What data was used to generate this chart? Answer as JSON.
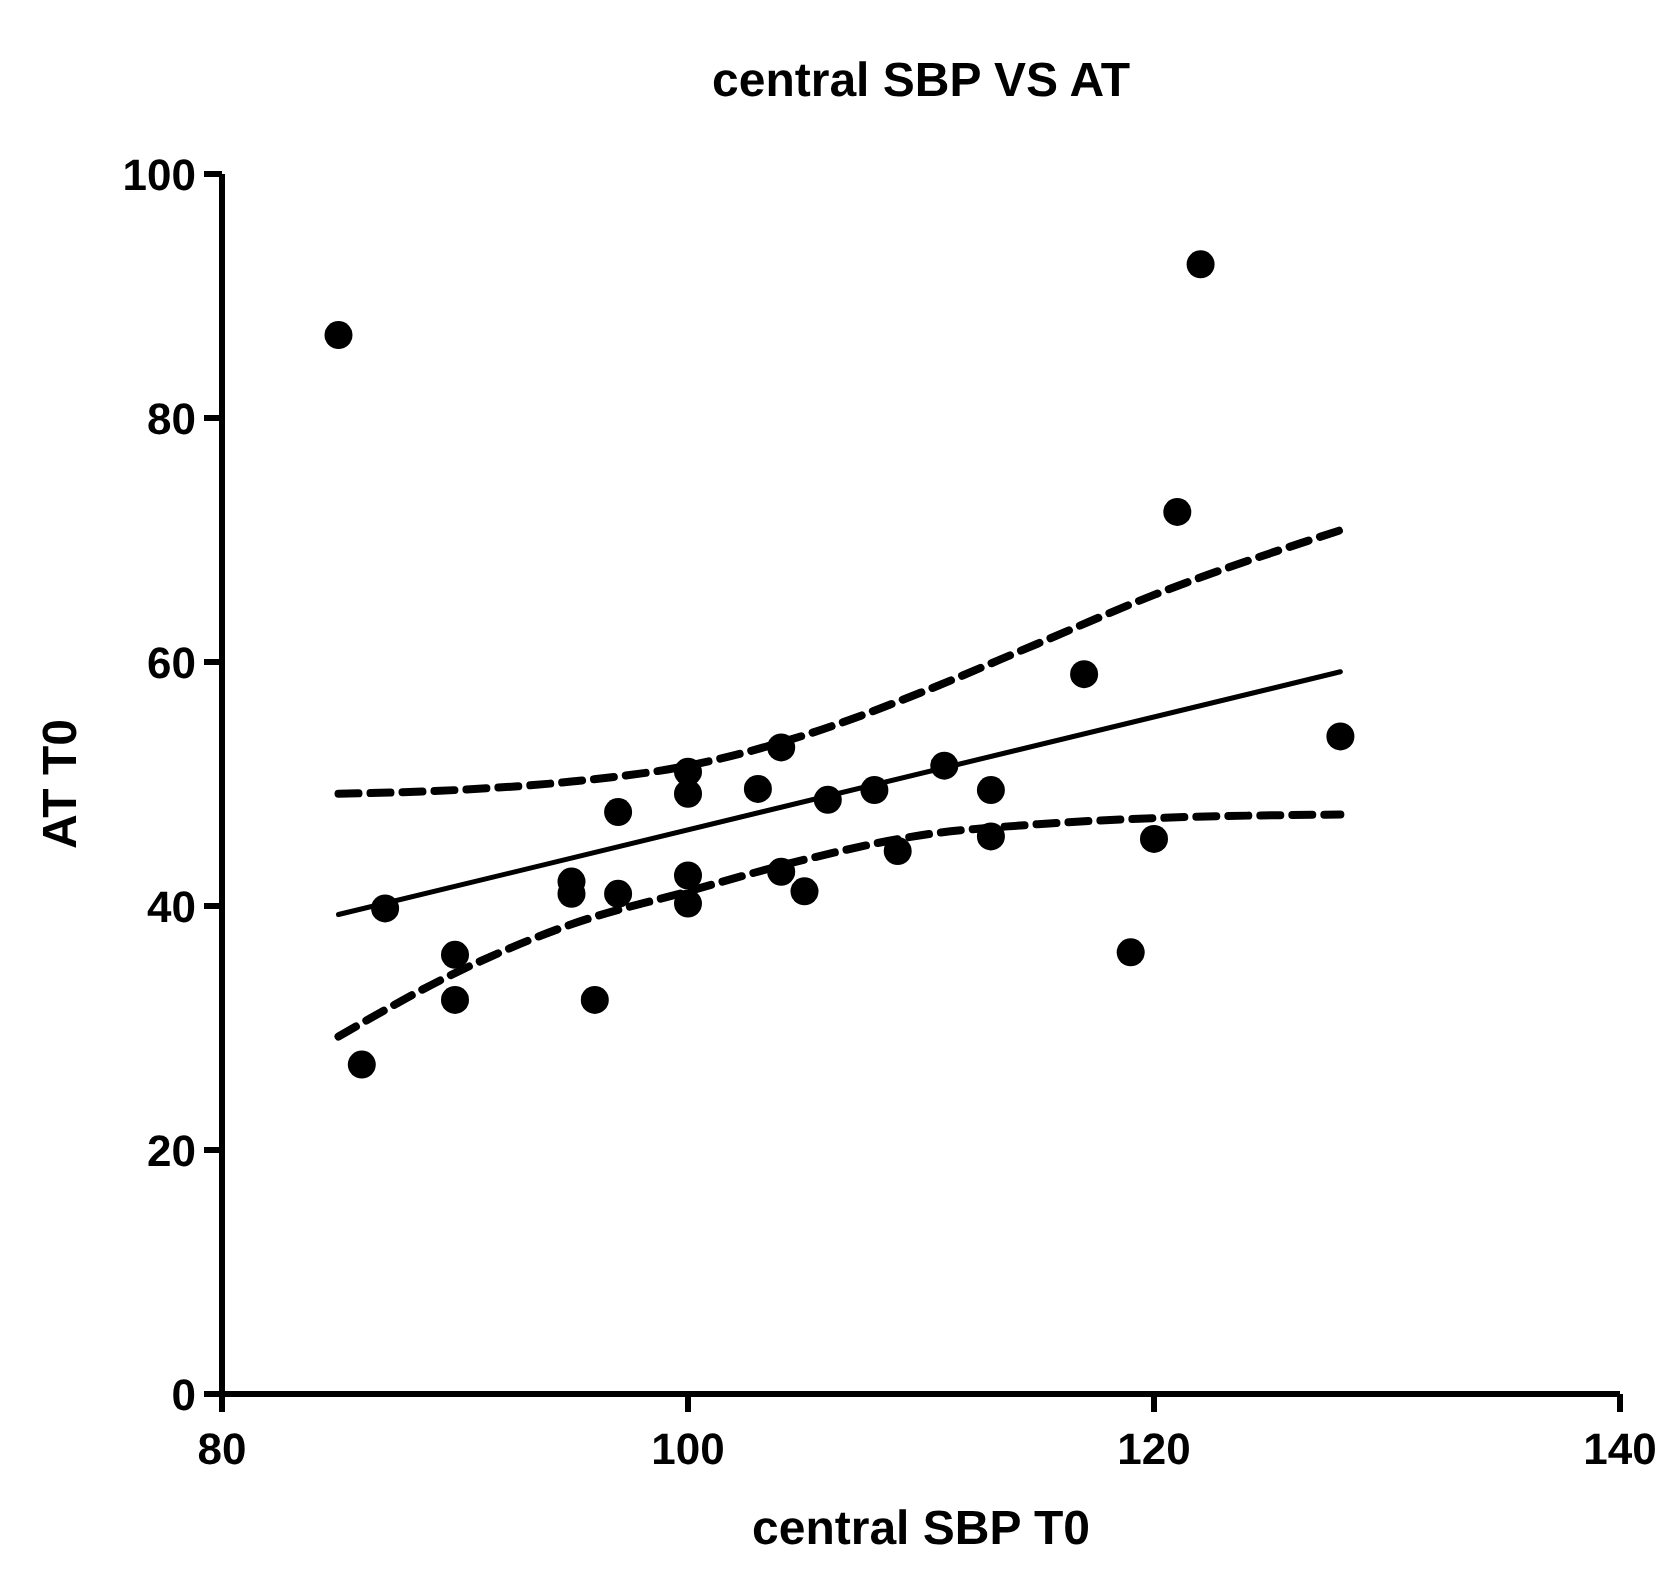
{
  "chart_data": {
    "type": "scatter",
    "title": "central SBP VS AT",
    "xlabel": "central SBP T0",
    "ylabel": "AT T0",
    "xlim": [
      80,
      140
    ],
    "xticks": [
      80,
      100,
      120,
      140
    ],
    "ylim": [
      0,
      100
    ],
    "yticks": [
      0,
      20,
      40,
      60,
      80,
      100
    ],
    "grid": false,
    "series": [
      {
        "color": "#000000",
        "marker": "circle",
        "x": [
          85,
          86,
          87,
          90,
          90,
          95,
          95,
          96,
          97,
          97,
          100,
          100,
          100,
          100,
          103,
          104,
          104,
          105,
          106,
          108,
          109,
          111,
          113,
          113,
          117,
          119,
          120,
          121,
          122,
          128
        ],
        "values": [
          86.8,
          27,
          39.8,
          36,
          32.3,
          42,
          41,
          32.3,
          47.7,
          41,
          51,
          49.2,
          42.5,
          40.2,
          49.6,
          53,
          42.8,
          41.2,
          48.7,
          49.5,
          44.5,
          51.5,
          49.5,
          45.7,
          59,
          36.2,
          45.5,
          72.3,
          92.6,
          53.9
        ]
      },
      {
        "type": "line",
        "color": "#000000",
        "marker": "none",
        "line_style": "solid",
        "x": [
          85,
          128
        ],
        "values": [
          39.3,
          59.2
        ]
      },
      {
        "type": "line",
        "color": "#000000",
        "marker": "none",
        "line_style": "dashed",
        "x": [
          85,
          90,
          95,
          100,
          105,
          110,
          115,
          120,
          128
        ],
        "values": [
          49.2,
          49.5,
          50.2,
          51.5,
          54,
          57.5,
          61.5,
          65.5,
          70.8
        ]
      },
      {
        "type": "line",
        "color": "#000000",
        "marker": "none",
        "line_style": "dashed",
        "x": [
          85,
          90,
          95,
          100,
          105,
          110,
          115,
          120,
          128
        ],
        "values": [
          29.3,
          34.5,
          38.5,
          41.2,
          43.8,
          45.8,
          46.7,
          47.2,
          47.5
        ]
      }
    ]
  }
}
